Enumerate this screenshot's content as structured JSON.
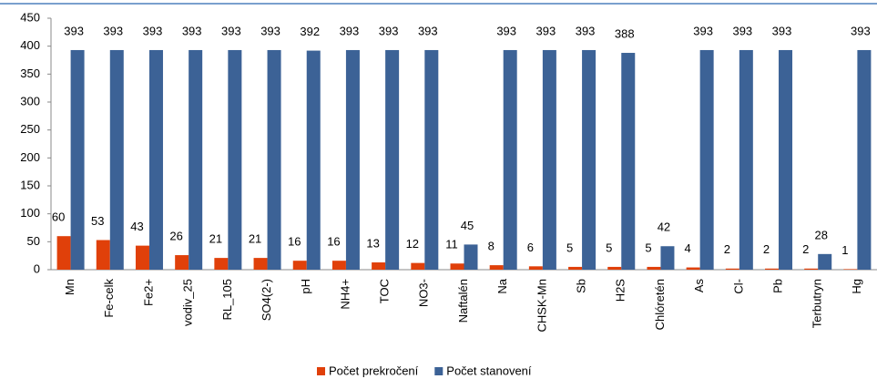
{
  "chart_data": {
    "type": "bar",
    "categories": [
      "Mn",
      "Fe-celk",
      "Fe2+",
      "vodiv_25",
      "RL_105",
      "SO4(2-)",
      "pH",
      "NH4+",
      "TOC",
      "NO3-",
      "Naftalén",
      "Na",
      "CHSK-Mn",
      "Sb",
      "H2S",
      "Chlóretén",
      "As",
      "Cl-",
      "Pb",
      "Terbutryn",
      "Hg"
    ],
    "series": [
      {
        "name": "Počet prekročení",
        "color": "#e0400a",
        "values": [
          60,
          53,
          43,
          26,
          21,
          21,
          16,
          16,
          13,
          12,
          11,
          8,
          6,
          5,
          5,
          5,
          4,
          2,
          2,
          2,
          1
        ]
      },
      {
        "name": "Počet stanovení",
        "color": "#3c6296",
        "values": [
          393,
          393,
          393,
          393,
          393,
          393,
          392,
          393,
          393,
          393,
          45,
          393,
          393,
          393,
          388,
          42,
          393,
          393,
          393,
          28,
          393
        ]
      }
    ],
    "ylim": [
      0,
      450
    ],
    "yticks": [
      0,
      50,
      100,
      150,
      200,
      250,
      300,
      350,
      400,
      450
    ],
    "grid": false,
    "legend": "bottom"
  }
}
